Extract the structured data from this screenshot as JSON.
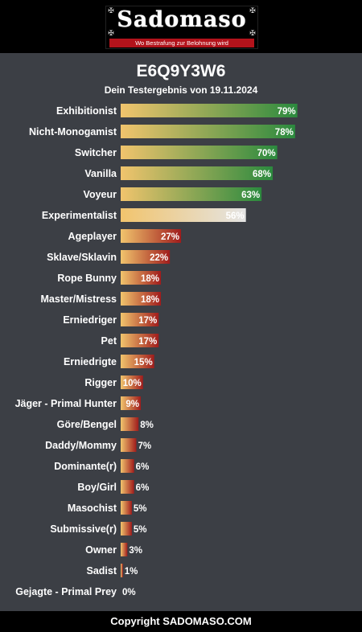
{
  "header": {
    "logo_text": "Sadomaso",
    "logo_tagline": "Wo Bestrafung zur Belohnung wird"
  },
  "title": "E6Q9Y3W6",
  "subtitle": "Dein Testergebnis von 19.11.2024",
  "footer": "Copyright SADOMASO.COM",
  "colors": {
    "background": "#3c3f45",
    "bar_start": "#f1c46d",
    "high_end": "#2b8a3e",
    "mid_end": "#e4e4e4",
    "low_end": "#a01c1c"
  },
  "chart_data": {
    "type": "bar",
    "orientation": "horizontal",
    "xlim": [
      0,
      100
    ],
    "categories": [
      "Exhibitionist",
      "Nicht-Monogamist",
      "Switcher",
      "Vanilla",
      "Voyeur",
      "Experimentalist",
      "Ageplayer",
      "Sklave/Sklavin",
      "Rope Bunny",
      "Master/Mistress",
      "Erniedriger",
      "Pet",
      "Erniedrigte",
      "Rigger",
      "Jäger - Primal Hunter",
      "Göre/Bengel",
      "Daddy/Mommy",
      "Dominante(r)",
      "Boy/Girl",
      "Masochist",
      "Submissive(r)",
      "Owner",
      "Sadist",
      "Gejagte - Primal Prey"
    ],
    "values": [
      79,
      78,
      70,
      68,
      63,
      56,
      27,
      22,
      18,
      18,
      17,
      17,
      15,
      10,
      9,
      8,
      7,
      6,
      6,
      5,
      5,
      3,
      1,
      0
    ],
    "value_labels": [
      "79%",
      "78%",
      "70%",
      "68%",
      "63%",
      "56%",
      "27%",
      "22%",
      "18%",
      "18%",
      "17%",
      "17%",
      "15%",
      "10%",
      "9%",
      "8%",
      "7%",
      "6%",
      "6%",
      "5%",
      "5%",
      "3%",
      "1%",
      "0%"
    ]
  }
}
